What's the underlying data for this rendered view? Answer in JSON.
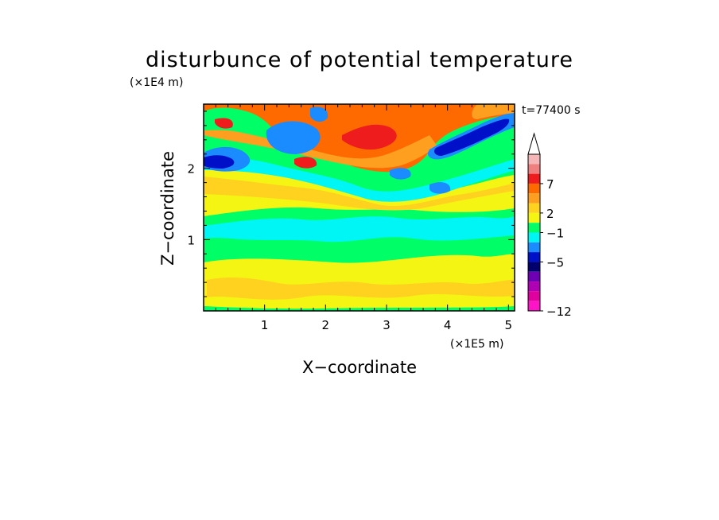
{
  "chart_data": {
    "type": "heatmap",
    "title": "disturbunce of potential temperature",
    "xlabel": "X−coordinate",
    "ylabel": "Z−coordinate",
    "x_scale_label": "(×1E5 m)",
    "y_scale_label": "(×1E4 m)",
    "time_label": "t=77400 s",
    "xlim": [
      0,
      5.1
    ],
    "ylim": [
      0,
      2.9
    ],
    "x_ticks": [
      "1",
      "2",
      "3",
      "4",
      "5"
    ],
    "x_tick_values": [
      1,
      2,
      3,
      4,
      5
    ],
    "y_ticks": [
      "1",
      "2"
    ],
    "y_tick_values": [
      1,
      2
    ],
    "colorbar": {
      "labels": [
        "7",
        "2",
        "−1",
        "−5",
        "−12"
      ],
      "label_values": [
        7,
        2,
        -1,
        -5,
        -12
      ],
      "colors": [
        "#f4b6b6",
        "#f08080",
        "#ee1c1c",
        "#ff6a00",
        "#ff9f1f",
        "#ffd21f",
        "#f5f514",
        "#00ff66",
        "#00f5f5",
        "#1a8cff",
        "#0010c8",
        "#00006e",
        "#6e00b4",
        "#b000b4",
        "#e000a0",
        "#ff14c8"
      ],
      "extend": "max"
    },
    "bands": [
      {
        "z_range": [
          0.0,
          0.1
        ],
        "level": "0 to 1",
        "color": "#00ff66"
      },
      {
        "z_range": [
          0.1,
          0.8
        ],
        "level": "0 to 2",
        "color": "#f5f514"
      },
      {
        "z_range": [
          0.8,
          1.3
        ],
        "level": "-1 to 0",
        "color": "#00ff66"
      },
      {
        "z_range": [
          1.0,
          1.2
        ],
        "level": "-2 to -1",
        "color": "#00f5f5"
      },
      {
        "z_range": [
          1.3,
          1.8
        ],
        "level": "0 to 2",
        "color": "#f5f514"
      },
      {
        "z_range": [
          1.8,
          2.3
        ],
        "level": "-2 to 1",
        "color": "#00f5f5"
      },
      {
        "z_range": [
          2.1,
          2.8
        ],
        "level": "-7 to -3",
        "color": "#1a8cff"
      },
      {
        "z_range": [
          1.9,
          2.7
        ],
        "level": "2 to 7",
        "color": "#ff6a00"
      }
    ]
  }
}
